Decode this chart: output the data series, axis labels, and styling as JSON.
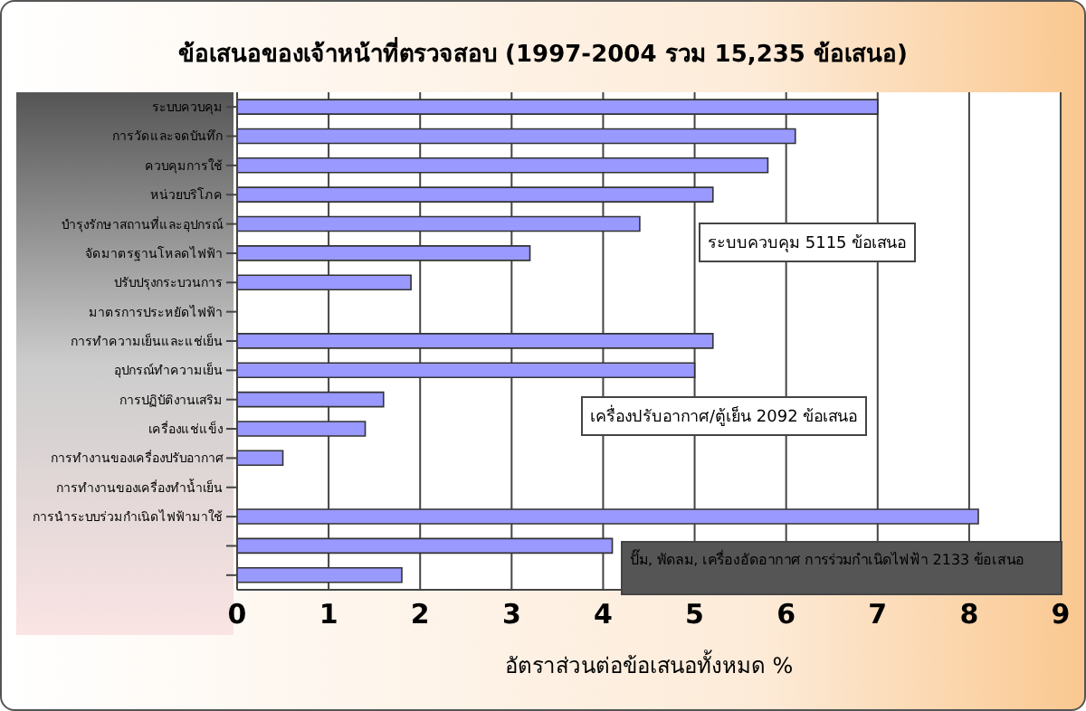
{
  "chart_data": {
    "type": "bar",
    "orientation": "horizontal",
    "title": "ข้อเสนอของเจ้าหน้าที่ตรวจสอบ (1997-2004  รวม 15,235 ข้อเสนอ)",
    "xlabel": "อัตราส่วนต่อข้อเสนอทั้งหมด  %",
    "categories": [
      "ระบบควบคุม",
      "การวัดและจดบันทึก",
      "ควบคุมการใช้",
      "หน่วยบริโภค",
      "บำรุงรักษาสถานที่และอุปกรณ์",
      "จัดมาตรฐานโหลดไฟฟ้า",
      "ปรับปรุงกระบวนการ",
      "มาตรการประหยัดไฟฟ้า",
      "การทำความเย็นและแช่เย็น",
      "อุปกรณ์ทำความเย็น",
      "การปฏิบัติงานเสริม",
      "เครื่องแช่แข็ง",
      "การทำงานของเครื่องปรับอากาศ",
      "การทำงานของเครื่องทำน้ำเย็น",
      "การนำระบบร่วมกำเนิดไฟฟ้ามาใช้",
      null,
      null
    ],
    "values": [
      7.0,
      6.1,
      5.8,
      5.2,
      4.4,
      3.2,
      1.9,
      null,
      5.2,
      5.0,
      1.6,
      1.4,
      0.5,
      null,
      8.1,
      4.1,
      1.8
    ],
    "color": "#9999ff",
    "xlim": [
      0,
      9
    ],
    "xticks": [
      0,
      1,
      2,
      3,
      4,
      5,
      6,
      7,
      8,
      9
    ],
    "grid": "x",
    "annotations": [
      "ระบบควบคุม 5115 ข้อเสนอ",
      "เครื่องปรับอากาศ/ตู้เย็น 2092 ข้อเสนอ",
      "ปั๊ม, พัดลม, เครื่องอัดอากาศ การร่วมกำเนิดไฟฟ้า 2133 ข้อเสนอ"
    ]
  }
}
